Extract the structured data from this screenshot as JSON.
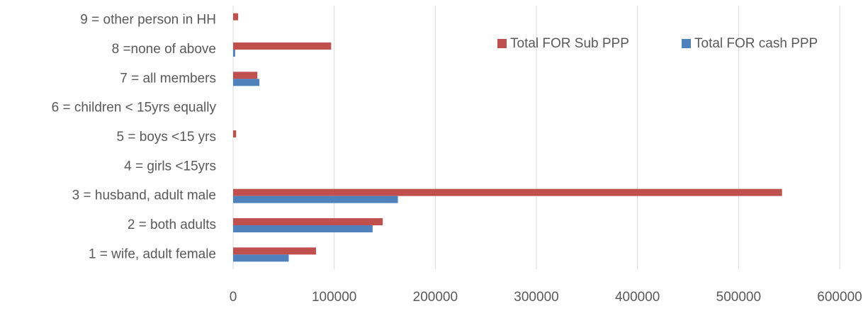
{
  "chart_data": {
    "type": "hbar",
    "categories": [
      "1 = wife, adult female",
      "2 = both adults",
      "3 = husband, adult male",
      "4 = girls <15yrs",
      "5 = boys <15 yrs",
      "6 = children < 15yrs equally",
      "7 = all members",
      "8 =none of above",
      "9 = other person in HH"
    ],
    "series": [
      {
        "name": "Total FOR Sub PPP",
        "color": "#c0504d",
        "values": [
          82000,
          148000,
          543000,
          0,
          3000,
          0,
          24000,
          97000,
          5000
        ]
      },
      {
        "name": "Total FOR cash PPP",
        "color": "#4f81bd",
        "values": [
          55000,
          138000,
          163000,
          0,
          0,
          0,
          26000,
          2000,
          0
        ]
      }
    ],
    "xlim": [
      0,
      600000
    ],
    "xticks": [
      0,
      100000,
      200000,
      300000,
      400000,
      500000,
      600000
    ],
    "grid": true,
    "legend": "top-right"
  }
}
